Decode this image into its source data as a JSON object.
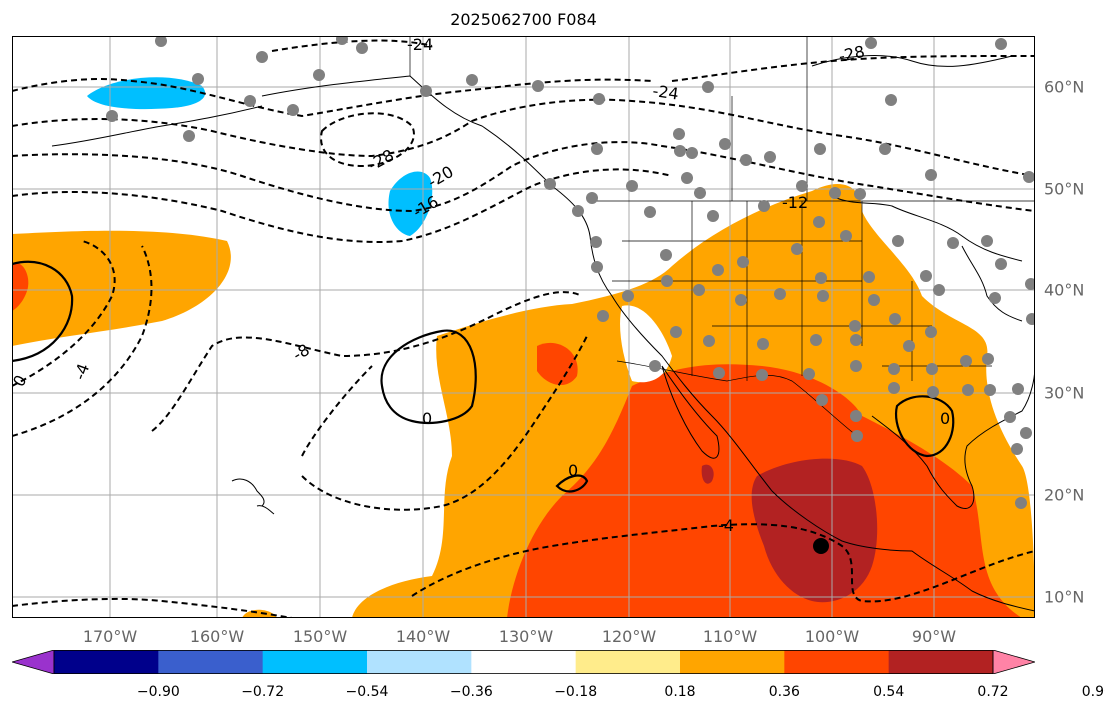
{
  "title": "2025062700 F084",
  "map": {
    "x_ticks": [
      "170°W",
      "160°W",
      "150°W",
      "140°W",
      "130°W",
      "120°W",
      "110°W",
      "100°W",
      "90°W"
    ],
    "y_ticks": [
      "60°N",
      "50°N",
      "40°N",
      "30°N",
      "20°N",
      "10°N"
    ],
    "contour_labels": [
      "-24",
      "-28",
      "-24",
      "-28",
      "-20",
      "-16",
      "-8",
      "-4",
      "0",
      "0",
      "0",
      "0",
      "-4",
      "-12"
    ]
  },
  "colorbar": {
    "colors": [
      "#9a32cd",
      "#00008b",
      "#3a5fcd",
      "#00bfff",
      "#b0e2ff",
      "#ffffff",
      "#ffec8b",
      "#ffa500",
      "#ff4500",
      "#b22222",
      "#ff83a6"
    ],
    "tick_labels": [
      "−0.90",
      "−0.72",
      "−0.54",
      "−0.36",
      "−0.18",
      "0.18",
      "0.36",
      "0.54",
      "0.72",
      "0.90"
    ]
  }
}
